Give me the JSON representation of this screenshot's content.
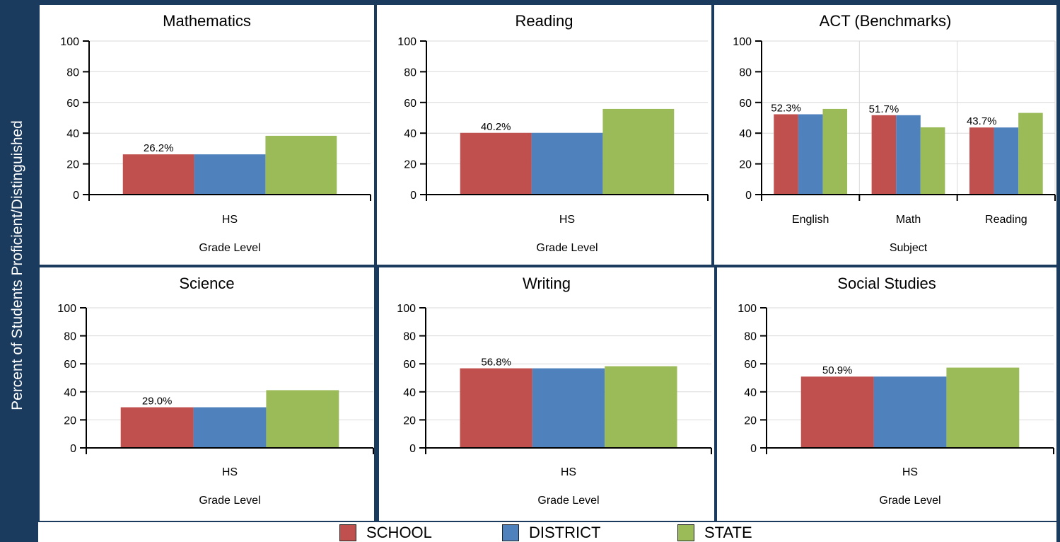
{
  "y_axis_title": "Percent of Students Proficient/Distinguished",
  "colors": {
    "school": "#c0504d",
    "district": "#4f81bd",
    "state": "#9bbb59"
  },
  "legend": [
    {
      "label": "SCHOOL",
      "color": "#c0504d"
    },
    {
      "label": "DISTRICT",
      "color": "#4f81bd"
    },
    {
      "label": "STATE",
      "color": "#9bbb59"
    }
  ],
  "chart_data": [
    {
      "type": "bar",
      "title": "Mathematics",
      "xlabel": "Grade Level",
      "ylim": [
        0,
        100
      ],
      "yticks": [
        "0",
        "20",
        "40",
        "60",
        "80",
        "100"
      ],
      "categories": [
        "HS"
      ],
      "series": [
        {
          "name": "SCHOOL",
          "values": [
            26.2
          ]
        },
        {
          "name": "DISTRICT",
          "values": [
            26.2
          ]
        },
        {
          "name": "STATE",
          "values": [
            38.3
          ]
        }
      ],
      "data_labels": [
        "26.2%"
      ],
      "grid": "horizontal"
    },
    {
      "type": "bar",
      "title": "Reading",
      "xlabel": "Grade Level",
      "ylim": [
        0,
        100
      ],
      "yticks": [
        "0",
        "20",
        "40",
        "60",
        "80",
        "100"
      ],
      "categories": [
        "HS"
      ],
      "series": [
        {
          "name": "SCHOOL",
          "values": [
            40.2
          ]
        },
        {
          "name": "DISTRICT",
          "values": [
            40.2
          ]
        },
        {
          "name": "STATE",
          "values": [
            55.8
          ]
        }
      ],
      "data_labels": [
        "40.2%"
      ],
      "grid": "horizontal"
    },
    {
      "type": "bar",
      "title": "ACT (Benchmarks)",
      "xlabel": "Subject",
      "ylim": [
        0,
        100
      ],
      "yticks": [
        "0",
        "20",
        "40",
        "60",
        "80",
        "100"
      ],
      "categories": [
        "English",
        "Math",
        "Reading"
      ],
      "series": [
        {
          "name": "SCHOOL",
          "values": [
            52.3,
            51.7,
            43.7
          ]
        },
        {
          "name": "DISTRICT",
          "values": [
            52.3,
            51.7,
            43.7
          ]
        },
        {
          "name": "STATE",
          "values": [
            55.8,
            43.8,
            53.2
          ]
        }
      ],
      "data_labels": [
        "52.3%",
        "51.7%",
        "43.7%"
      ],
      "grid": "both"
    },
    {
      "type": "bar",
      "title": "Science",
      "xlabel": "Grade Level",
      "ylim": [
        0,
        100
      ],
      "yticks": [
        "0",
        "20",
        "40",
        "60",
        "80",
        "100"
      ],
      "categories": [
        "HS"
      ],
      "series": [
        {
          "name": "SCHOOL",
          "values": [
            29.0
          ]
        },
        {
          "name": "DISTRICT",
          "values": [
            29.0
          ]
        },
        {
          "name": "STATE",
          "values": [
            41.2
          ]
        }
      ],
      "data_labels": [
        "29.0%"
      ],
      "grid": "horizontal"
    },
    {
      "type": "bar",
      "title": "Writing",
      "xlabel": "Grade Level",
      "ylim": [
        0,
        100
      ],
      "yticks": [
        "0",
        "20",
        "40",
        "60",
        "80",
        "100"
      ],
      "categories": [
        "HS"
      ],
      "series": [
        {
          "name": "SCHOOL",
          "values": [
            56.8
          ]
        },
        {
          "name": "DISTRICT",
          "values": [
            56.8
          ]
        },
        {
          "name": "STATE",
          "values": [
            58.3
          ]
        }
      ],
      "data_labels": [
        "56.8%"
      ],
      "grid": "horizontal"
    },
    {
      "type": "bar",
      "title": "Social Studies",
      "xlabel": "Grade Level",
      "ylim": [
        0,
        100
      ],
      "yticks": [
        "0",
        "20",
        "40",
        "60",
        "80",
        "100"
      ],
      "categories": [
        "HS"
      ],
      "series": [
        {
          "name": "SCHOOL",
          "values": [
            50.9
          ]
        },
        {
          "name": "DISTRICT",
          "values": [
            50.9
          ]
        },
        {
          "name": "STATE",
          "values": [
            57.3
          ]
        }
      ],
      "data_labels": [
        "50.9%"
      ],
      "grid": "horizontal"
    }
  ]
}
